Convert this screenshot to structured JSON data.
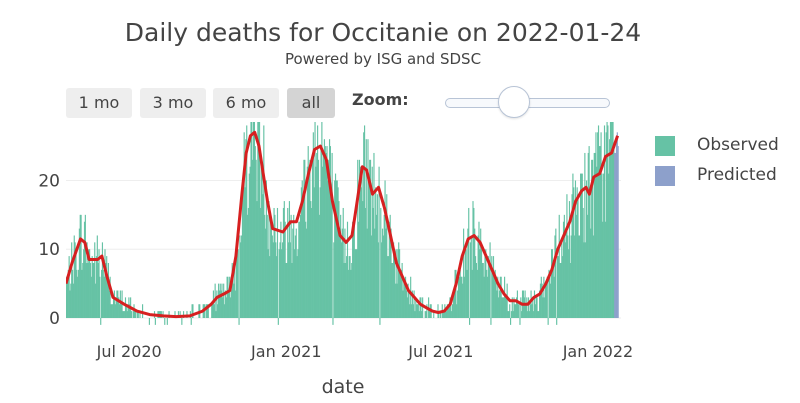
{
  "title": "Daily deaths for Occitanie on 2022-01-24",
  "subtitle": "Powered by ISG and SDSC",
  "range_buttons": [
    {
      "label": "1 mo",
      "active": false
    },
    {
      "label": "3 mo",
      "active": false
    },
    {
      "label": "6 mo",
      "active": false
    },
    {
      "label": "all",
      "active": true
    }
  ],
  "zoom": {
    "label": "Zoom:",
    "value": 0.42
  },
  "legend": [
    {
      "label": "Observed",
      "color": "#66c2a5"
    },
    {
      "label": "Predicted",
      "color": "#8da0cb"
    }
  ],
  "colors": {
    "observed": "#66c2a5",
    "predicted": "#8da0cb",
    "trend": "#d62020",
    "grid": "#eeeeee"
  },
  "chart_data": {
    "type": "bar",
    "title": "Daily deaths for Occitanie on 2022-01-24",
    "subtitle": "Powered by ISG and SDSC",
    "xlabel": "date",
    "ylabel": "",
    "x_start": "2020-04-18",
    "x_end": "2022-01-28",
    "ylim": [
      0,
      28.5
    ],
    "yticks": [
      0,
      10,
      20
    ],
    "xticks": [
      {
        "label": "Jul 2020",
        "date": "2020-07-01"
      },
      {
        "label": "Jan 2021",
        "date": "2021-01-01"
      },
      {
        "label": "Jul 2021",
        "date": "2021-07-01"
      },
      {
        "label": "Jan 2022",
        "date": "2022-01-01"
      }
    ],
    "trend_knots": [
      [
        "2020-04-18",
        5
      ],
      [
        "2020-04-25",
        8
      ],
      [
        "2020-05-05",
        11.5
      ],
      [
        "2020-05-10",
        11
      ],
      [
        "2020-05-15",
        8.5
      ],
      [
        "2020-05-25",
        8.5
      ],
      [
        "2020-05-30",
        9
      ],
      [
        "2020-06-05",
        6
      ],
      [
        "2020-06-12",
        3
      ],
      [
        "2020-06-25",
        2
      ],
      [
        "2020-07-10",
        1
      ],
      [
        "2020-07-25",
        0.5
      ],
      [
        "2020-08-10",
        0.3
      ],
      [
        "2020-08-25",
        0.2
      ],
      [
        "2020-09-10",
        0.3
      ],
      [
        "2020-09-25",
        1
      ],
      [
        "2020-10-05",
        2
      ],
      [
        "2020-10-12",
        3
      ],
      [
        "2020-10-20",
        3.5
      ],
      [
        "2020-10-27",
        4
      ],
      [
        "2020-11-03",
        9
      ],
      [
        "2020-11-10",
        18
      ],
      [
        "2020-11-15",
        24
      ],
      [
        "2020-11-20",
        26.5
      ],
      [
        "2020-11-25",
        27
      ],
      [
        "2020-11-30",
        25
      ],
      [
        "2020-12-05",
        21
      ],
      [
        "2020-12-10",
        17
      ],
      [
        "2020-12-16",
        13
      ],
      [
        "2020-12-28",
        12.5
      ],
      [
        "2021-01-06",
        14
      ],
      [
        "2021-01-13",
        14
      ],
      [
        "2021-01-20",
        17
      ],
      [
        "2021-01-27",
        21
      ],
      [
        "2021-02-03",
        24.5
      ],
      [
        "2021-02-10",
        25
      ],
      [
        "2021-02-17",
        23
      ],
      [
        "2021-02-24",
        17
      ],
      [
        "2021-03-05",
        12
      ],
      [
        "2021-03-12",
        11
      ],
      [
        "2021-03-19",
        12
      ],
      [
        "2021-03-25",
        17
      ],
      [
        "2021-03-31",
        22
      ],
      [
        "2021-04-05",
        21.5
      ],
      [
        "2021-04-12",
        18
      ],
      [
        "2021-04-19",
        19
      ],
      [
        "2021-04-26",
        16
      ],
      [
        "2021-05-03",
        12
      ],
      [
        "2021-05-10",
        8
      ],
      [
        "2021-05-17",
        6
      ],
      [
        "2021-05-24",
        4
      ],
      [
        "2021-05-31",
        3
      ],
      [
        "2021-06-07",
        2
      ],
      [
        "2021-06-14",
        1.5
      ],
      [
        "2021-06-21",
        1
      ],
      [
        "2021-06-28",
        0.8
      ],
      [
        "2021-07-05",
        1
      ],
      [
        "2021-07-12",
        2
      ],
      [
        "2021-07-19",
        5
      ],
      [
        "2021-07-26",
        9
      ],
      [
        "2021-08-02",
        11.5
      ],
      [
        "2021-08-09",
        12
      ],
      [
        "2021-08-16",
        11
      ],
      [
        "2021-08-23",
        9
      ],
      [
        "2021-08-30",
        7
      ],
      [
        "2021-09-06",
        5
      ],
      [
        "2021-09-13",
        3.5
      ],
      [
        "2021-09-20",
        2.5
      ],
      [
        "2021-09-27",
        2.5
      ],
      [
        "2021-10-04",
        2
      ],
      [
        "2021-10-11",
        2
      ],
      [
        "2021-10-18",
        3
      ],
      [
        "2021-10-25",
        3.5
      ],
      [
        "2021-11-01",
        5
      ],
      [
        "2021-11-08",
        7
      ],
      [
        "2021-11-15",
        10
      ],
      [
        "2021-11-22",
        12
      ],
      [
        "2021-11-29",
        14
      ],
      [
        "2021-12-06",
        17
      ],
      [
        "2021-12-13",
        18.5
      ],
      [
        "2021-12-18",
        19
      ],
      [
        "2021-12-22",
        18
      ],
      [
        "2021-12-27",
        20.5
      ],
      [
        "2022-01-03",
        21
      ],
      [
        "2022-01-10",
        23.5
      ],
      [
        "2022-01-17",
        24
      ],
      [
        "2022-01-24",
        26.5
      ]
    ],
    "observed_end": "2022-01-19",
    "predicted_start": "2022-01-20",
    "predicted_end": "2022-01-24"
  }
}
